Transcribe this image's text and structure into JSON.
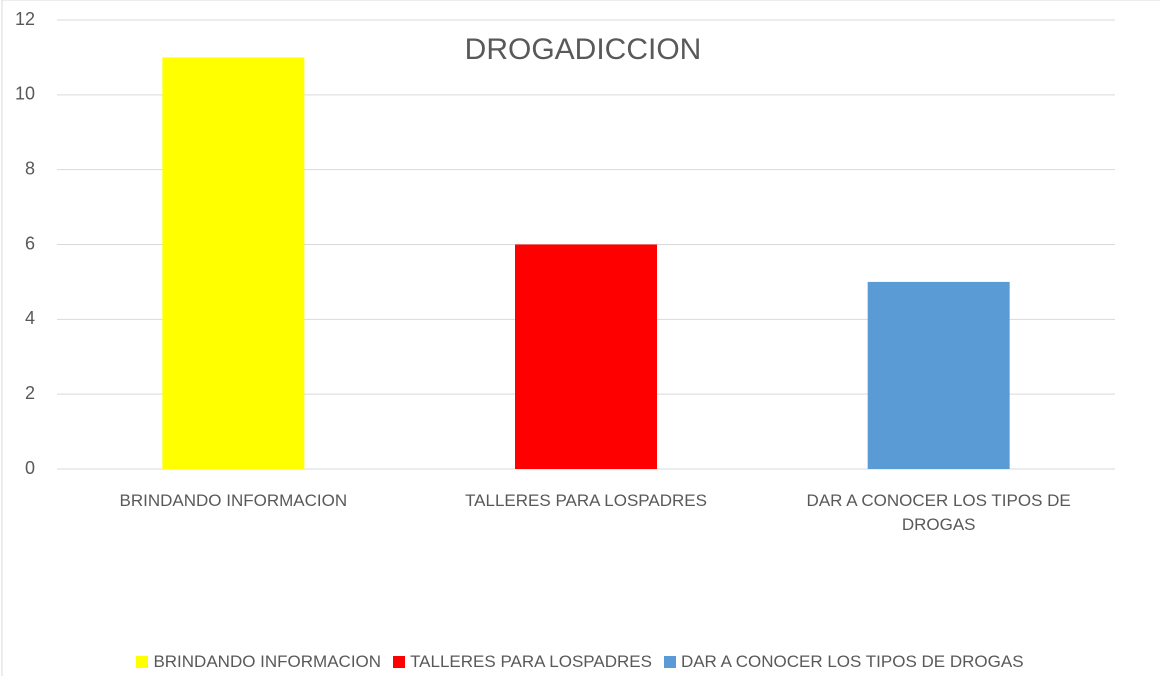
{
  "chart_data": {
    "type": "bar",
    "title": "DROGADICCION",
    "categories": [
      "BRINDANDO INFORMACION",
      "TALLERES PARA LOSPADRES",
      "DAR A CONOCER LOS TIPOS DE DROGAS"
    ],
    "values": [
      11,
      6,
      5
    ],
    "colors": [
      "#ffff00",
      "#ff0000",
      "#5b9bd5"
    ],
    "ylim": [
      0,
      12
    ],
    "yticks": [
      0,
      2,
      4,
      6,
      8,
      10,
      12
    ],
    "grid": true,
    "legend": "bottom"
  }
}
